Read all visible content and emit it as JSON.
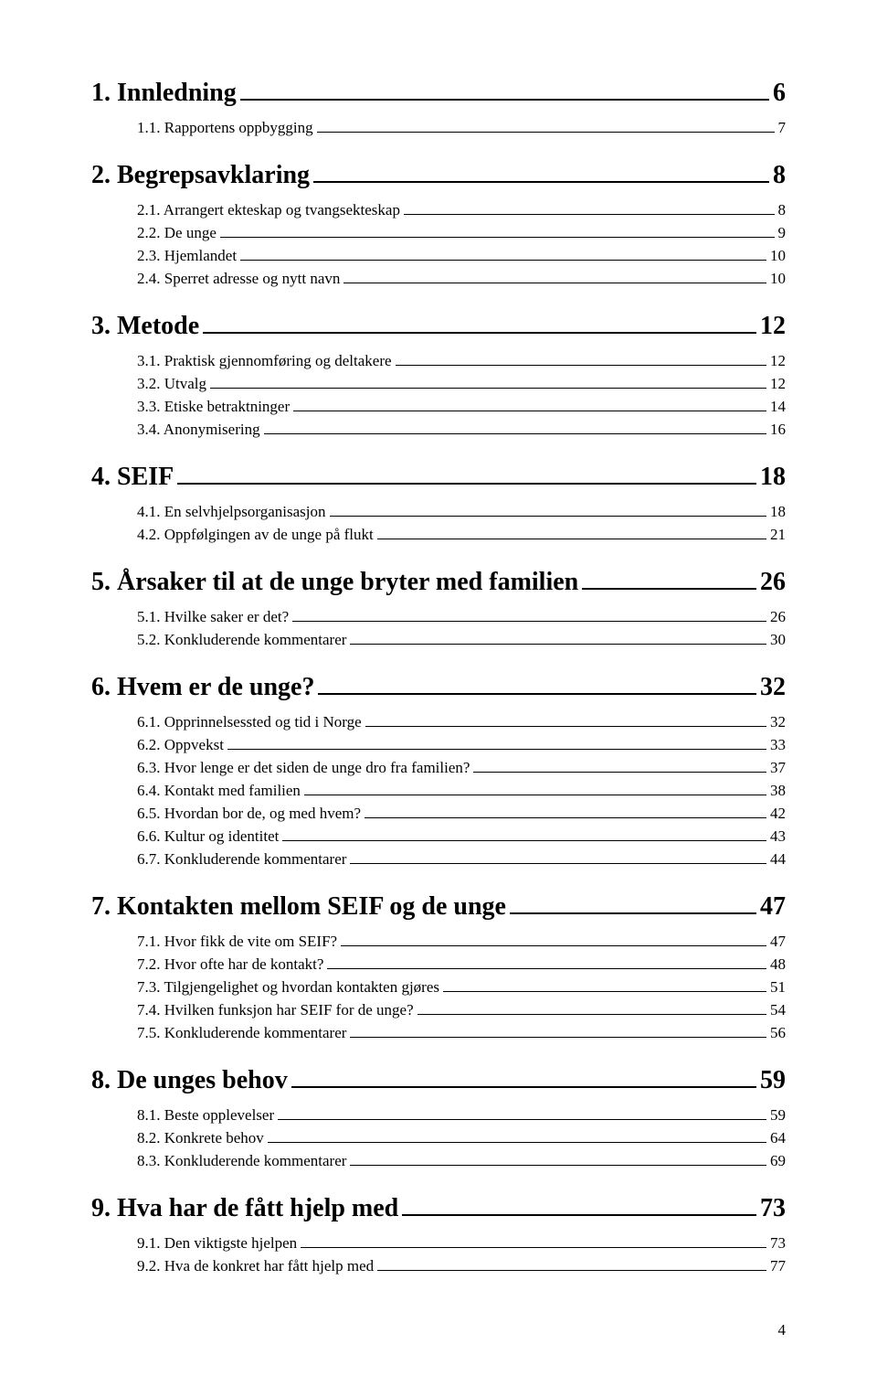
{
  "page_number": "4",
  "entries": [
    {
      "level": 1,
      "num": "1.",
      "title": "Innledning",
      "page": "6"
    },
    {
      "level": 2,
      "num": "1.1.",
      "title": "Rapportens oppbygging",
      "page": "7"
    },
    {
      "level": 1,
      "num": "2.",
      "title": "Begrepsavklaring",
      "page": "8"
    },
    {
      "level": 2,
      "num": "2.1.",
      "title": "Arrangert ekteskap og tvangsekteskap",
      "page": "8"
    },
    {
      "level": 2,
      "num": "2.2.",
      "title": "De unge",
      "page": "9"
    },
    {
      "level": 2,
      "num": "2.3.",
      "title": "Hjemlandet",
      "page": "10"
    },
    {
      "level": 2,
      "num": "2.4.",
      "title": "Sperret adresse og nytt navn",
      "page": "10"
    },
    {
      "level": 1,
      "num": "3.",
      "title": "Metode",
      "page": "12"
    },
    {
      "level": 2,
      "num": "3.1.",
      "title": "Praktisk gjennomføring og deltakere",
      "page": "12"
    },
    {
      "level": 2,
      "num": "3.2.",
      "title": "Utvalg",
      "page": "12"
    },
    {
      "level": 2,
      "num": "3.3.",
      "title": "Etiske betraktninger",
      "page": "14"
    },
    {
      "level": 2,
      "num": "3.4.",
      "title": "Anonymisering",
      "page": "16"
    },
    {
      "level": 1,
      "num": "4.",
      "title": "SEIF",
      "page": "18"
    },
    {
      "level": 2,
      "num": "4.1.",
      "title": "En selvhjelpsorganisasjon",
      "page": "18"
    },
    {
      "level": 2,
      "num": "4.2.",
      "title": "Oppfølgingen av de unge på flukt",
      "page": "21"
    },
    {
      "level": 1,
      "num": "5.",
      "title": "Årsaker til at de unge bryter med familien",
      "page": "26"
    },
    {
      "level": 2,
      "num": "5.1.",
      "title": "Hvilke saker er det?",
      "page": "26"
    },
    {
      "level": 2,
      "num": "5.2.",
      "title": "Konkluderende kommentarer",
      "page": "30"
    },
    {
      "level": 1,
      "num": "6.",
      "title": "Hvem er de unge?",
      "page": "32"
    },
    {
      "level": 2,
      "num": "6.1.",
      "title": "Opprinnelsessted og tid i Norge",
      "page": "32"
    },
    {
      "level": 2,
      "num": "6.2.",
      "title": "Oppvekst",
      "page": "33"
    },
    {
      "level": 2,
      "num": "6.3.",
      "title": "Hvor lenge er det siden de unge dro fra familien?",
      "page": "37"
    },
    {
      "level": 2,
      "num": "6.4.",
      "title": "Kontakt med familien",
      "page": "38"
    },
    {
      "level": 2,
      "num": "6.5.",
      "title": "Hvordan bor de, og med hvem?",
      "page": "42"
    },
    {
      "level": 2,
      "num": "6.6.",
      "title": "Kultur og identitet",
      "page": "43"
    },
    {
      "level": 2,
      "num": "6.7.",
      "title": "Konkluderende kommentarer",
      "page": "44"
    },
    {
      "level": 1,
      "num": "7.",
      "title": "Kontakten mellom SEIF og de unge",
      "page": "47"
    },
    {
      "level": 2,
      "num": "7.1.",
      "title": "Hvor fikk de vite om SEIF?",
      "page": "47"
    },
    {
      "level": 2,
      "num": "7.2.",
      "title": "Hvor ofte har de kontakt?",
      "page": "48"
    },
    {
      "level": 2,
      "num": "7.3.",
      "title": "Tilgjengelighet og hvordan kontakten gjøres",
      "page": "51"
    },
    {
      "level": 2,
      "num": "7.4.",
      "title": "Hvilken funksjon har SEIF for de unge?",
      "page": "54"
    },
    {
      "level": 2,
      "num": "7.5.",
      "title": "Konkluderende kommentarer",
      "page": "56"
    },
    {
      "level": 1,
      "num": "8.",
      "title": "De unges behov",
      "page": "59"
    },
    {
      "level": 2,
      "num": "8.1.",
      "title": "Beste opplevelser",
      "page": "59"
    },
    {
      "level": 2,
      "num": "8.2.",
      "title": "Konkrete behov",
      "page": "64"
    },
    {
      "level": 2,
      "num": "8.3.",
      "title": "Konkluderende kommentarer",
      "page": "69"
    },
    {
      "level": 1,
      "num": "9.",
      "title": "Hva har de fått hjelp med",
      "page": "73"
    },
    {
      "level": 2,
      "num": "9.1.",
      "title": "Den viktigste hjelpen",
      "page": "73"
    },
    {
      "level": 2,
      "num": "9.2.",
      "title": "Hva de konkret har fått hjelp med",
      "page": "77"
    }
  ]
}
